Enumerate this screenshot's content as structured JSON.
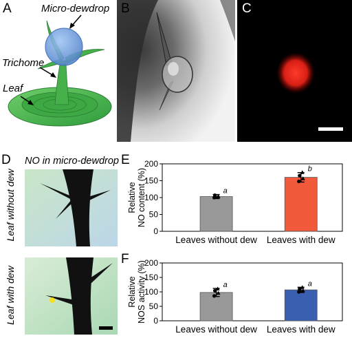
{
  "panels": {
    "a": {
      "label": "A",
      "annotations": {
        "dewdrop": "Micro-dewdrop",
        "trichome": "Trichome",
        "leaf": "Leaf"
      },
      "colors": {
        "leaf_outer": "#4caf50",
        "leaf_inner": "#2e8b3e",
        "trichome": "#3fa845",
        "drop": "#5a8fd6"
      }
    },
    "b": {
      "label": "B"
    },
    "c": {
      "label": "C",
      "colors": {
        "background": "#000000",
        "signal": "#e0241b"
      }
    },
    "d": {
      "label": "D",
      "title": "NO in micro-dewdrop",
      "top_label": "Leaf without dew",
      "bottom_label": "Leaf with dew"
    },
    "e": {
      "label": "E"
    },
    "f": {
      "label": "F"
    }
  },
  "chart_data": [
    {
      "panel": "E",
      "type": "bar",
      "categories": [
        "Leaves without dew",
        "Leaves with dew"
      ],
      "values": [
        103,
        160
      ],
      "errors": [
        6,
        14
      ],
      "points": [
        [
          100,
          104,
          107,
          101
        ],
        [
          148,
          157,
          165,
          175
        ]
      ],
      "significance": [
        "a",
        "b"
      ],
      "colors": [
        "#999999",
        "#f05a3a"
      ],
      "ylabel_lines": [
        "Relative",
        "NO content (%)"
      ],
      "ylim": [
        0,
        200
      ],
      "yticks": [
        "0",
        "50",
        "100",
        "150",
        "200"
      ],
      "ytick_values": [
        0,
        50,
        100,
        150,
        200
      ]
    },
    {
      "panel": "F",
      "type": "bar",
      "categories": [
        "Leaves without dew",
        "Leaves with dew"
      ],
      "values": [
        98,
        107
      ],
      "errors": [
        14,
        9
      ],
      "points": [
        [
          86,
          96,
          104,
          111
        ],
        [
          100,
          105,
          110,
          116
        ]
      ],
      "significance": [
        "a",
        "a"
      ],
      "colors": [
        "#999999",
        "#3a5fb0"
      ],
      "ylabel_lines": [
        "Relative",
        "NOS activity (%)"
      ],
      "ylim": [
        0,
        200
      ],
      "yticks": [
        "0",
        "50",
        "100",
        "150",
        "200"
      ],
      "ytick_values": [
        0,
        50,
        100,
        150,
        200
      ]
    }
  ]
}
